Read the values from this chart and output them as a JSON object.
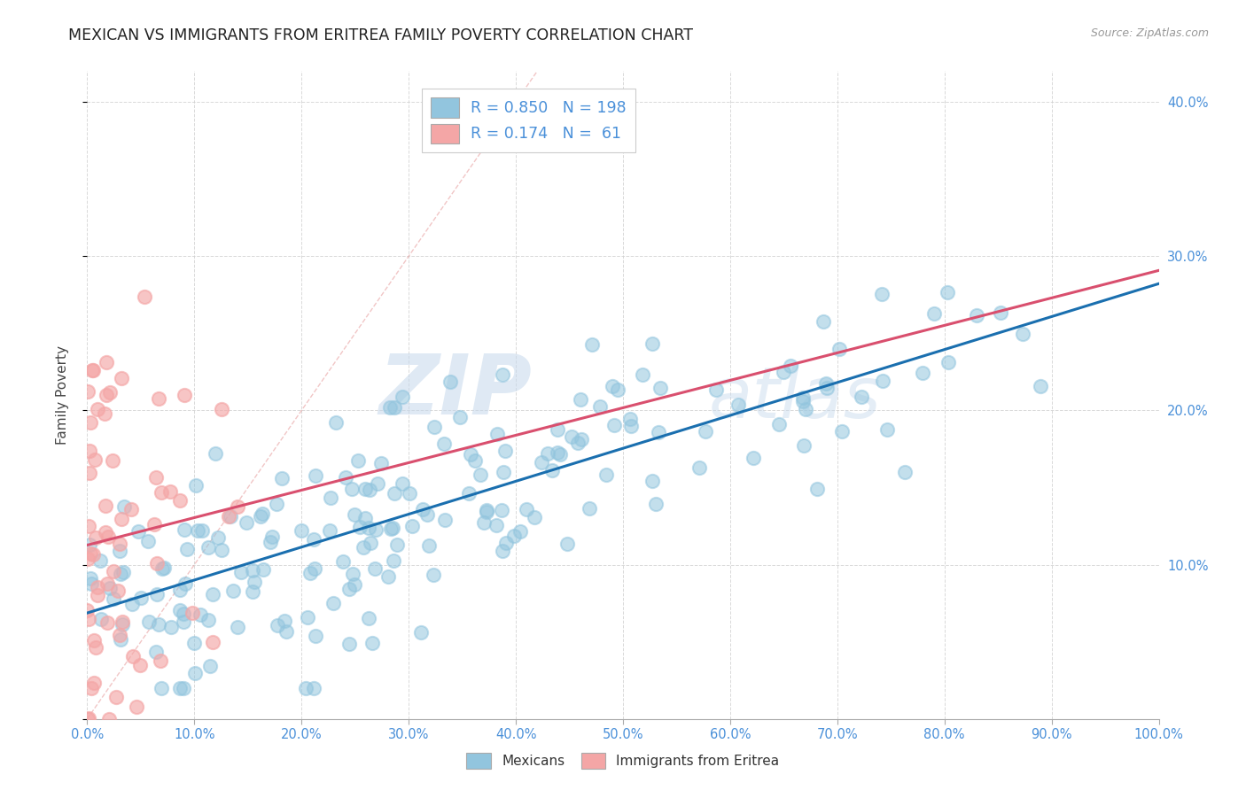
{
  "title": "MEXICAN VS IMMIGRANTS FROM ERITREA FAMILY POVERTY CORRELATION CHART",
  "source": "Source: ZipAtlas.com",
  "ylabel": "Family Poverty",
  "x_min": 0.0,
  "x_max": 1.0,
  "y_min": 0.0,
  "y_max": 0.42,
  "watermark_zip": "ZIP",
  "watermark_atlas": "atlas",
  "blue_color": "#92c5de",
  "pink_color": "#f4a6a6",
  "blue_line_color": "#1a6faf",
  "pink_line_color": "#d94f6e",
  "diag_line_color": "#e8a0a0",
  "tick_color": "#4a90d9",
  "title_color": "#222222",
  "background_color": "#ffffff",
  "grid_color": "#d0d0d0",
  "mexicans_label": "Mexicans",
  "eritrea_label": "Immigrants from Eritrea",
  "blue_R": 0.85,
  "blue_N": 198,
  "pink_R": 0.174,
  "pink_N": 61,
  "blue_slope": 0.195,
  "blue_intercept": 0.073,
  "blue_noise": 0.038,
  "pink_slope": 0.25,
  "pink_intercept": 0.105,
  "pink_noise": 0.065,
  "blue_seed": 77,
  "pink_seed": 42,
  "y_ticks": [
    0.0,
    0.1,
    0.2,
    0.3,
    0.4
  ],
  "y_tick_labels": [
    "",
    "10.0%",
    "20.0%",
    "30.0%",
    "40.0%"
  ],
  "x_ticks": [
    0.0,
    0.1,
    0.2,
    0.3,
    0.4,
    0.5,
    0.6,
    0.7,
    0.8,
    0.9,
    1.0
  ],
  "x_tick_labels": [
    "0.0%",
    "10.0%",
    "20.0%",
    "30.0%",
    "40.0%",
    "50.0%",
    "60.0%",
    "70.0%",
    "80.0%",
    "90.0%",
    "100.0%"
  ]
}
